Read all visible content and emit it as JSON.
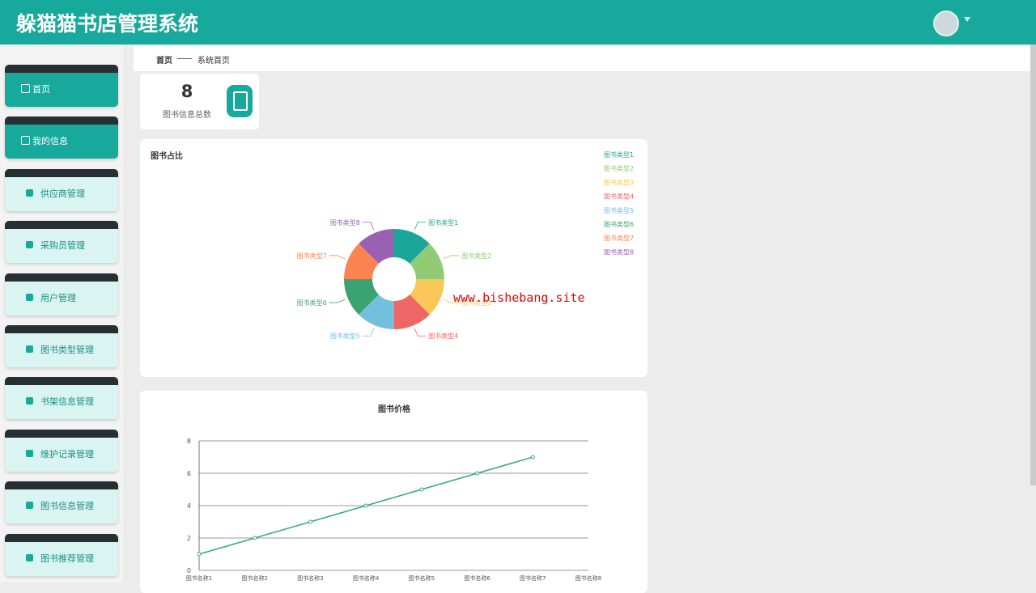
{
  "header": {
    "title": "躲猫猫书店管理系统"
  },
  "menu": [
    "首页",
    "我的信息",
    "供应商管理",
    "采购员管理",
    "用户管理",
    "图书类型管理",
    "书架信息管理",
    "维护记录管理",
    "图书信息管理",
    "图书推荐管理"
  ],
  "breadcrumb": {
    "home": "首页",
    "current": "系统首页"
  },
  "stat": {
    "value": "8",
    "label": "图书信息总数"
  },
  "watermark": "www.bishebang.site",
  "chart_data": [
    {
      "type": "pie",
      "title": "图书占比",
      "donut": true,
      "categories": [
        "图书类型1",
        "图书类型2",
        "图书类型3",
        "图书类型4",
        "图书类型5",
        "图书类型6",
        "图书类型7",
        "图书类型8"
      ],
      "values": [
        1,
        1,
        1,
        1,
        1,
        1,
        1,
        1
      ],
      "colors": [
        "#1aa79a",
        "#91cc75",
        "#fac858",
        "#ee6666",
        "#73c0de",
        "#3ba272",
        "#fc8452",
        "#9a60b4"
      ],
      "legend": "top-right"
    },
    {
      "type": "line",
      "title": "图书价格",
      "categories": [
        "图书名称1",
        "图书名称2",
        "图书名称3",
        "图书名称4",
        "图书名称5",
        "图书名称6",
        "图书名称7",
        "图书名称8"
      ],
      "values": [
        1,
        2,
        3,
        4,
        5,
        6,
        7,
        null
      ],
      "color": "#3aa886",
      "ylim": [
        0,
        8
      ],
      "yticks": [
        0,
        2,
        4,
        6,
        8
      ],
      "grid": true
    }
  ]
}
